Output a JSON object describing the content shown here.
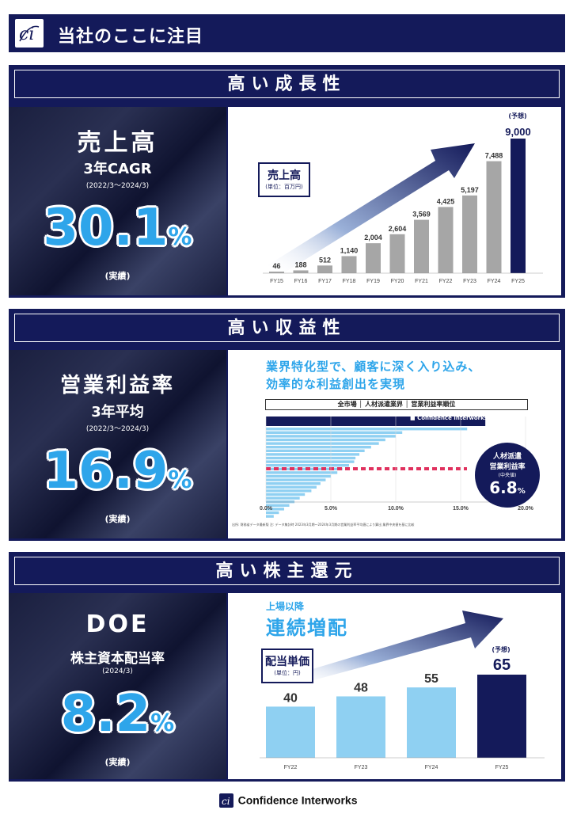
{
  "header": {
    "title": "当社のここに注目"
  },
  "growth": {
    "section_title": "高い成長性",
    "metric": "売上高",
    "sub": "3年CAGR",
    "period": "(2022/3〜2024/3)",
    "value": "30.1",
    "unit": "%",
    "note": "(実績)",
    "chart_label": "売上高",
    "chart_unit": "(単位：百万円)",
    "forecast": "(予想)"
  },
  "profit": {
    "section_title": "高い収益性",
    "metric": "営業利益率",
    "sub": "3年平均",
    "period": "(2022/3〜2024/3)",
    "value": "16.9",
    "unit": "%",
    "note": "(実績)",
    "headline_1": "業界特化型で、顧客に深く入り込み、",
    "headline_2": "効率的な利益創出を実現",
    "table_header": "全市場 │ 人材派遣業界 │ 営業利益率順位",
    "legend": "Confidence Interworks",
    "median_title_1": "人材派遣",
    "median_title_2": "営業利益率",
    "median_sub": "(中央値)",
    "median_value": "6.8",
    "median_unit": "%",
    "x_ticks": [
      "0.0%",
      "5.0%",
      "10.0%",
      "15.0%",
      "20.0%"
    ],
    "footnote": "出所: 財務省データ最新版 注: データ集計時 2023年3月期〜2024年3月期の営業利益率平均値により算出 業界中央値を基に比較"
  },
  "return": {
    "section_title": "高い株主還元",
    "metric": "DOE",
    "sub": "株主資本配当率",
    "period": "(2024/3)",
    "value": "8.2",
    "unit": "%",
    "note": "(実績)",
    "since_listing": "上場以降",
    "headline": "連続増配",
    "chart_label": "配当単価",
    "chart_unit": "(単位：円)",
    "forecast": "(予想)"
  },
  "footer": {
    "company": "Confidence Interworks"
  },
  "chart_data": [
    {
      "type": "bar",
      "title": "売上高",
      "ylabel": "百万円",
      "categories": [
        "FY15",
        "FY16",
        "FY17",
        "FY18",
        "FY19",
        "FY20",
        "FY21",
        "FY22",
        "FY23",
        "FY24",
        "FY25"
      ],
      "values": [
        46,
        188,
        512,
        1140,
        2004,
        2604,
        3569,
        4425,
        5197,
        7488,
        9000
      ],
      "labels": [
        "46",
        "188",
        "512",
        "1,140",
        "2,004",
        "2,604",
        "3,569",
        "4,425",
        "5,197",
        "7,488",
        "9,000"
      ],
      "forecast_index": 10,
      "ylim": [
        0,
        9000
      ]
    },
    {
      "type": "bar",
      "title": "配当単価",
      "ylabel": "円",
      "categories": [
        "FY22",
        "FY23",
        "FY24",
        "FY25"
      ],
      "values": [
        40,
        48,
        55,
        65
      ],
      "forecast_index": 3,
      "ylim": [
        0,
        65
      ]
    },
    {
      "type": "bar",
      "title": "人材派遣業界 営業利益率順位",
      "orientation": "horizontal",
      "values": [
        16.9,
        15.5,
        10.5,
        10.0,
        9.2,
        8.7,
        8.1,
        7.6,
        7.2,
        6.9,
        6.8,
        6.4,
        5.9,
        5.5,
        5.0,
        4.6,
        4.2,
        3.9,
        3.5,
        3.0,
        2.6,
        2.2,
        1.8,
        1.4,
        1.0,
        0.6
      ],
      "median": 6.8,
      "xlim": [
        0,
        20
      ]
    }
  ]
}
